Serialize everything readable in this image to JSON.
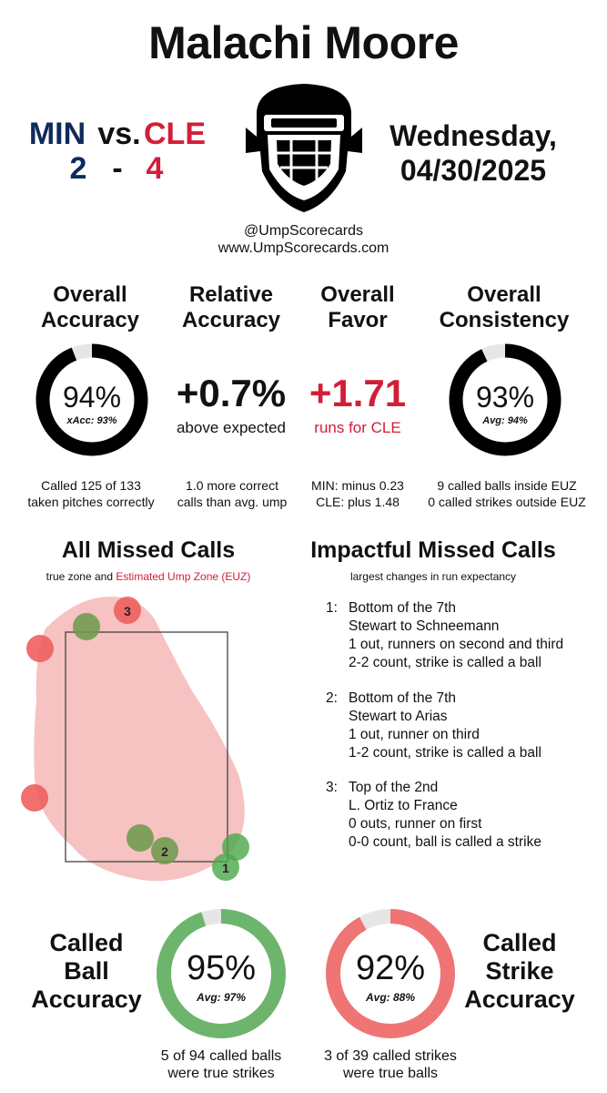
{
  "umpire": "Malachi Moore",
  "game": {
    "away_team": "MIN",
    "vs": "vs.",
    "home_team": "CLE",
    "away_score": "2",
    "dash": "-",
    "home_score": "4",
    "date_line1": "Wednesday,",
    "date_line2": "04/30/2025"
  },
  "brand": {
    "handle": "@UmpScorecards",
    "site": "www.UmpScorecards.com"
  },
  "colors": {
    "min": "#0f2a5c",
    "cle": "#d21e36",
    "ring_black": "#000000",
    "ring_track": "#e6e6e6",
    "ball_green": "#6db56d",
    "strike_red": "#ef7474",
    "euz_fill": "#f6c2c2"
  },
  "stats": {
    "overall_accuracy": {
      "title_line1": "Overall",
      "title_line2": "Accuracy",
      "value": "94%",
      "sub": "xAcc: 93%",
      "fraction": 0.94,
      "note_line1": "Called 125 of 133",
      "note_line2": "taken pitches correctly"
    },
    "relative_accuracy": {
      "title_line1": "Relative",
      "title_line2": "Accuracy",
      "value": "+0.7%",
      "sub": "above expected",
      "note_line1": "1.0 more correct",
      "note_line2": "calls than avg. ump"
    },
    "overall_favor": {
      "title_line1": "Overall",
      "title_line2": "Favor",
      "value": "+1.71",
      "sub": "runs for CLE",
      "note_line1": "MIN: minus 0.23",
      "note_line2": "CLE: plus 1.48"
    },
    "overall_consistency": {
      "title_line1": "Overall",
      "title_line2": "Consistency",
      "value": "93%",
      "sub": "Avg: 94%",
      "fraction": 0.93,
      "note_line1": "9 called balls inside EUZ",
      "note_line2": "0 called strikes outside EUZ"
    }
  },
  "missed": {
    "title": "All Missed Calls",
    "sub_true": "true zone and",
    "sub_euz": "Estimated Ump Zone (EUZ)",
    "labels": [
      "3",
      "2",
      "1"
    ]
  },
  "impactful": {
    "title": "Impactful Missed Calls",
    "sub": "largest changes in run expectancy",
    "calls": [
      {
        "num": "1:",
        "lines": [
          "Bottom of the 7th",
          "Stewart to Schneemann",
          "1 out, runners on second and third",
          "2-2 count, strike is called a ball"
        ]
      },
      {
        "num": "2:",
        "lines": [
          "Bottom of the 7th",
          "Stewart to Arias",
          "1 out, runner on third",
          "1-2 count, strike is called a ball"
        ]
      },
      {
        "num": "3:",
        "lines": [
          "Top of the 2nd",
          "L. Ortiz to France",
          "0 outs, runner on first",
          "0-0 count, ball is called a strike"
        ]
      }
    ]
  },
  "called_ball": {
    "label_line1": "Called",
    "label_line2": "Ball",
    "label_line3": "Accuracy",
    "value": "95%",
    "sub": "Avg: 97%",
    "fraction": 0.95,
    "note_line1": "5 of 94 called balls",
    "note_line2": "were true strikes"
  },
  "called_strike": {
    "label_line1": "Called",
    "label_line2": "Strike",
    "label_line3": "Accuracy",
    "value": "92%",
    "sub": "Avg: 88%",
    "fraction": 0.92,
    "note_line1": "3 of 39 called strikes",
    "note_line2": "were true balls"
  }
}
